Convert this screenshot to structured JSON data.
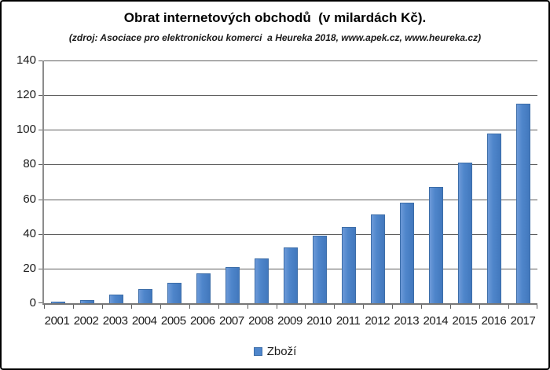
{
  "window": {
    "background_color": "#ffffff",
    "frame_border_color": "#000000"
  },
  "header": {
    "title": "Obrat internetových obchodů  (v milardách Kč).",
    "subtitle": "(zdroj: Asociace pro elektronickou komerci  a Heureka 2018, www.apek.cz, www.heureka.cz)"
  },
  "legend": {
    "label": "Zboží",
    "marker_color": "#4f86cb",
    "marker_border_color": "#3c6da8",
    "position": "bottom-center"
  },
  "chart_data": {
    "type": "bar",
    "title": "Obrat internetových obchodů (v milardách Kč).",
    "subtitle": "(zdroj: Asociace pro elektronickou komerci a Heureka 2018, www.apek.cz, www.heureka.cz)",
    "categories": [
      "2001",
      "2002",
      "2003",
      "2004",
      "2005",
      "2006",
      "2007",
      "2008",
      "2009",
      "2010",
      "2011",
      "2012",
      "2013",
      "2014",
      "2015",
      "2016",
      "2017"
    ],
    "series": [
      {
        "name": "Zboží",
        "values": [
          1,
          2,
          5,
          8,
          12,
          17,
          21,
          26,
          32,
          39,
          44,
          51,
          58,
          67,
          81,
          98,
          115
        ]
      }
    ],
    "xlabel": "",
    "ylabel": "",
    "ylim": [
      0,
      140
    ],
    "ytick_step": 20,
    "grid": "horizontal",
    "legend_position": "bottom",
    "bar_color": "#4f86cb",
    "bar_border_color": "#3c6da8",
    "gridline_color": "#5f5f5f",
    "axis_color": "#8c8c8c",
    "label_color": "#1a1a1a"
  }
}
